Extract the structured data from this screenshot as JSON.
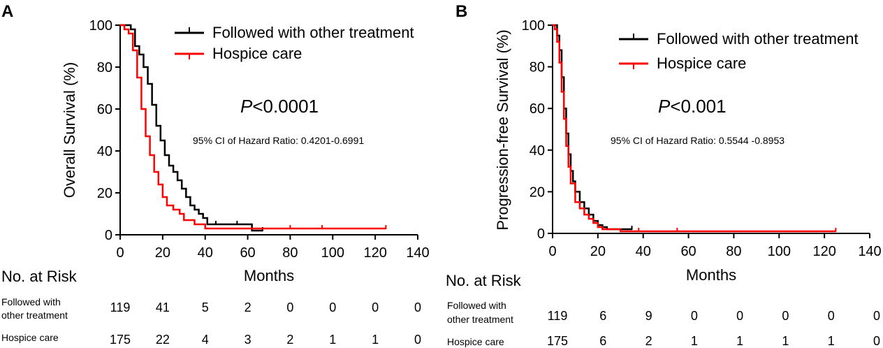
{
  "chart_data": [
    {
      "type": "line",
      "panel": "A",
      "xlabel": "Months",
      "ylabel": "Overall Survival (%)",
      "xlim": [
        0,
        140
      ],
      "ylim": [
        0,
        100
      ],
      "xticks": [
        0,
        20,
        40,
        60,
        80,
        100,
        120,
        140
      ],
      "yticks": [
        0,
        20,
        40,
        60,
        80,
        100
      ],
      "grid": false,
      "legend_position": "top-right",
      "p_value": "<0.0001",
      "ci_text": "95% CI of Hazard Ratio: 0.4201-0.6991",
      "series": [
        {
          "name": "Followed with other treatment",
          "color": "#000000",
          "x": [
            0,
            3,
            5,
            7,
            9,
            11,
            13,
            15,
            17,
            19,
            21,
            23,
            25,
            27,
            29,
            31,
            33,
            35,
            37,
            39,
            41,
            45,
            55,
            62,
            67
          ],
          "y": [
            100,
            100,
            98,
            90,
            86,
            80,
            72,
            62,
            52,
            45,
            38,
            33,
            30,
            26,
            22,
            18,
            14,
            12,
            10,
            8,
            5,
            5,
            5,
            2,
            2
          ],
          "censor_x": [
            5,
            45,
            55,
            62,
            67
          ]
        },
        {
          "name": "Hospice care",
          "color": "#ff0000",
          "x": [
            0,
            2,
            4,
            6,
            8,
            10,
            12,
            14,
            16,
            18,
            20,
            22,
            25,
            28,
            30,
            35,
            38,
            40,
            60,
            80,
            100,
            125
          ],
          "y": [
            100,
            98,
            96,
            88,
            75,
            60,
            47,
            38,
            30,
            24,
            18,
            14,
            12,
            10,
            7,
            5,
            5,
            3,
            3,
            3,
            3,
            3
          ],
          "censor_x": [
            40,
            80,
            95,
            125
          ]
        }
      ],
      "risk_table": {
        "title": "No. at Risk",
        "rows": [
          {
            "group": "Followed with other treatment",
            "group_line1": "Followed with",
            "group_line2": "other treatment",
            "counts": [
              "119",
              "41",
              "5",
              "2",
              "0",
              "0",
              "0",
              "0"
            ]
          },
          {
            "group": "Hospice care",
            "counts": [
              "175",
              "22",
              "4",
              "3",
              "2",
              "1",
              "1",
              "0"
            ]
          }
        ]
      }
    },
    {
      "type": "line",
      "panel": "B",
      "xlabel": "Months",
      "ylabel": "Progression-free Survival (%)",
      "xlim": [
        0,
        140
      ],
      "ylim": [
        0,
        100
      ],
      "xticks": [
        0,
        20,
        40,
        60,
        80,
        100,
        120,
        140
      ],
      "xtick_labels": [
        "0",
        "20",
        "40",
        "60",
        "80",
        "100",
        "120",
        "140"
      ],
      "yticks": [
        0,
        20,
        40,
        60,
        80,
        100
      ],
      "grid": false,
      "legend_position": "top-right",
      "p_value": "<0.001",
      "ci_text": "95% CI of Hazard Ratio: 0.5544 -0.8953",
      "series": [
        {
          "name": "Followed with other treatment",
          "color": "#000000",
          "x": [
            0,
            2,
            3,
            4,
            5,
            6,
            7,
            8,
            9,
            10,
            12,
            14,
            16,
            18,
            20,
            22,
            24,
            30,
            35
          ],
          "y": [
            100,
            95,
            88,
            75,
            60,
            48,
            38,
            30,
            25,
            20,
            15,
            12,
            9,
            6,
            4,
            3,
            2,
            2,
            2
          ],
          "censor_x": [
            35
          ]
        },
        {
          "name": "Hospice care",
          "color": "#ff0000",
          "x": [
            0,
            1,
            2,
            3,
            4,
            5,
            6,
            7,
            8,
            10,
            12,
            14,
            16,
            18,
            20,
            22,
            25,
            30,
            38,
            55,
            80,
            100,
            125
          ],
          "y": [
            100,
            98,
            92,
            82,
            68,
            55,
            42,
            32,
            24,
            15,
            12,
            9,
            7,
            5,
            3,
            2,
            2,
            1,
            1,
            1,
            1,
            1,
            1
          ],
          "censor_x": [
            38,
            55,
            125
          ]
        }
      ],
      "risk_table": {
        "title": "No. at Risk",
        "rows": [
          {
            "group": "Followed with other treatment",
            "group_line1": "Followed with",
            "group_line2": "other treatment",
            "counts": [
              "119",
              "6",
              "9",
              "0",
              "0",
              "0",
              "0",
              "0"
            ]
          },
          {
            "group": "Hospice care",
            "counts": [
              "175",
              "6",
              "2",
              "1",
              "1",
              "1",
              "1",
              "0"
            ]
          }
        ]
      }
    }
  ]
}
